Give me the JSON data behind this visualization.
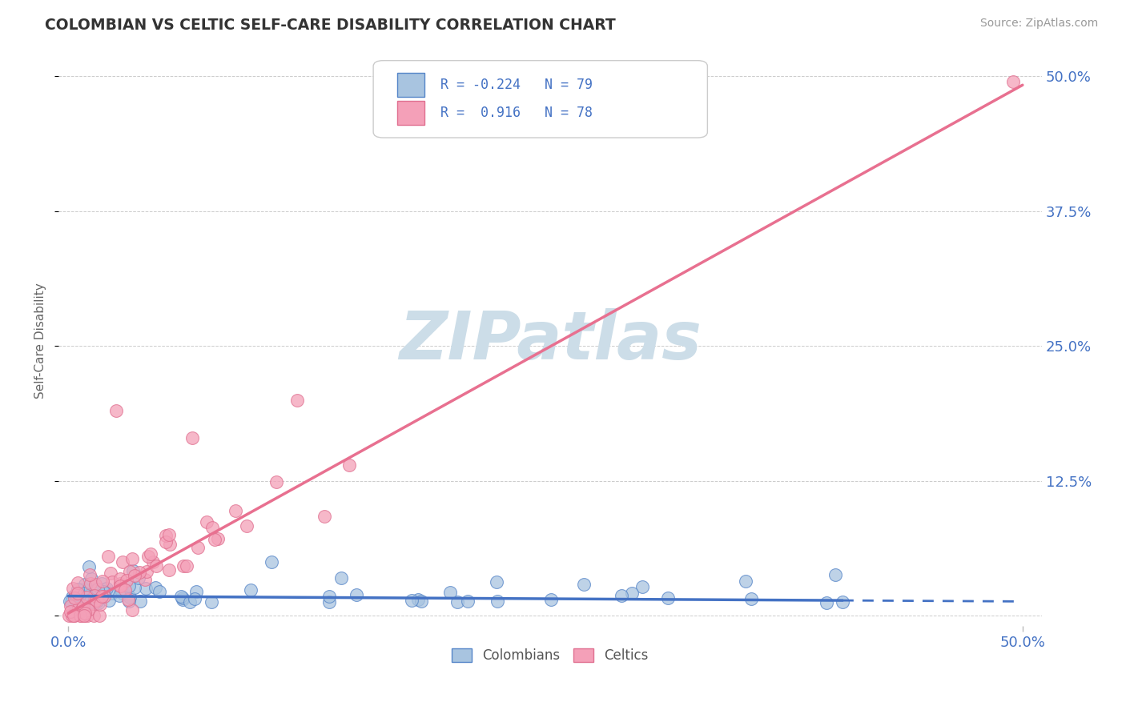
{
  "title": "COLOMBIAN VS CELTIC SELF-CARE DISABILITY CORRELATION CHART",
  "source_text": "Source: ZipAtlas.com",
  "ylabel": "Self-Care Disability",
  "xlim": [
    0.0,
    0.5
  ],
  "ylim": [
    0.0,
    0.5
  ],
  "colombian_color": "#a8c4e0",
  "celtic_color": "#f4a0b8",
  "colombian_edge_color": "#5585c8",
  "celtic_edge_color": "#e07090",
  "colombian_line_color": "#4472c4",
  "celtic_line_color": "#e87090",
  "colombian_R": -0.224,
  "colombian_N": 79,
  "celtic_R": 0.916,
  "celtic_N": 78,
  "watermark": "ZIPatlas",
  "watermark_color": "#ccdde8",
  "title_color": "#333333",
  "axis_tick_color": "#4472c4",
  "ylabel_color": "#666666",
  "legend_label1": "Colombians",
  "legend_label2": "Celtics",
  "background_color": "#ffffff",
  "grid_color": "#cccccc",
  "source_color": "#999999"
}
